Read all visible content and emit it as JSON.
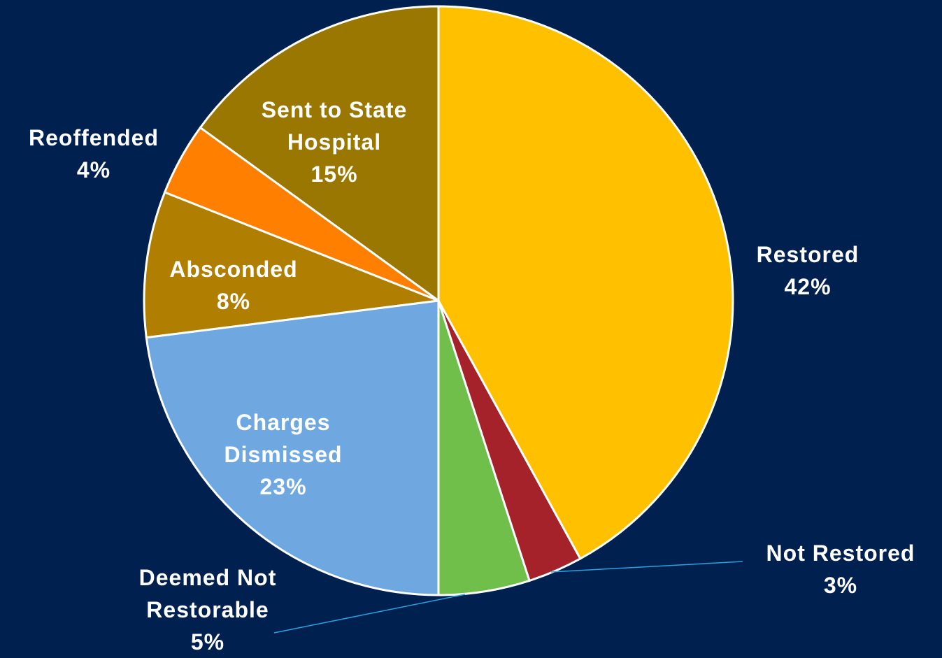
{
  "chart_data": {
    "type": "pie",
    "categories": [
      "Restored",
      "Not Restored",
      "Deemed Not Restorable",
      "Charges Dismissed",
      "Absconded",
      "Reoffended",
      "Sent to State Hospital"
    ],
    "values": [
      42,
      3,
      5,
      23,
      8,
      4,
      15
    ],
    "value_labels": [
      "42%",
      "3%",
      "5%",
      "23%",
      "8%",
      "4%",
      "15%"
    ],
    "colors": [
      "#ffc000",
      "#a5222a",
      "#70bf4b",
      "#6fa8e0",
      "#b07e00",
      "#ff8000",
      "#9a7700"
    ]
  }
}
